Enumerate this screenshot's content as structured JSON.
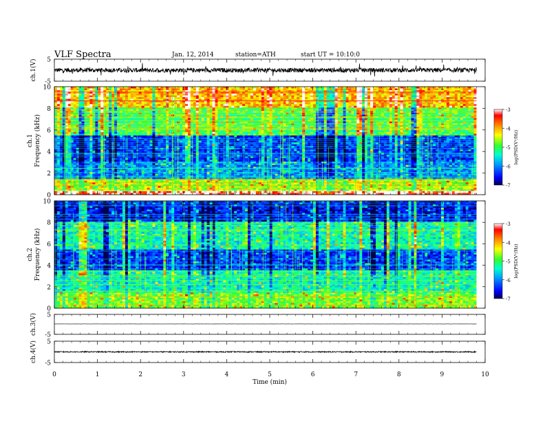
{
  "header": {
    "title": "VLF  Spectra",
    "date": "Jan. 12, 2014",
    "station": "station=ATH",
    "start": "start  UT  =   10:10:0"
  },
  "chart_data": [
    {
      "type": "line",
      "panel": "ch1-waveform",
      "ylabel": "ch.1(V)",
      "yticks": [
        "5",
        "-5"
      ],
      "ylim": [
        -5,
        5
      ],
      "x_range_min": [
        0,
        9.8
      ],
      "baseline_v": 0,
      "noise_amplitude_v": 1.0,
      "color": "#000000"
    },
    {
      "type": "heatmap",
      "panel": "ch1-spectrogram",
      "ylabel_channel": "ch.1",
      "ylabel": "Frequency  (kHz)",
      "yticks": [
        "0",
        "2",
        "4",
        "6",
        "8",
        "10"
      ],
      "ylim_khz": [
        0,
        10
      ],
      "x_range_min": [
        0,
        9.8
      ],
      "colorbar": {
        "label": "log(PSD(V²/Hz)",
        "ticks": [
          "-3",
          "-4",
          "-5",
          "-6",
          "-7"
        ],
        "range": [
          -7,
          -3
        ]
      },
      "typical_levels": [
        {
          "freq_khz": [
            0.0,
            0.4
          ],
          "log_psd": -3.2
        },
        {
          "freq_khz": [
            0.4,
            1.5
          ],
          "log_psd": -4.6
        },
        {
          "freq_khz": [
            1.5,
            3.0
          ],
          "log_psd": -6.0
        },
        {
          "freq_khz": [
            3.0,
            5.5
          ],
          "log_psd": -6.4
        },
        {
          "freq_khz": [
            5.5,
            8.0
          ],
          "log_psd": -5.0
        },
        {
          "freq_khz": [
            8.0,
            10.0
          ],
          "log_psd": -4.1
        }
      ]
    },
    {
      "type": "heatmap",
      "panel": "ch2-spectrogram",
      "ylabel_channel": "ch.2",
      "ylabel": "Frequency  (kHz)",
      "yticks": [
        "0",
        "2",
        "4",
        "6",
        "8",
        "10"
      ],
      "ylim_khz": [
        0,
        10
      ],
      "x_range_min": [
        0,
        9.8
      ],
      "colorbar": {
        "label": "log(PSD(V²/Hz)",
        "ticks": [
          "-3",
          "-4",
          "-5",
          "-6",
          "-7"
        ],
        "range": [
          -7,
          -3
        ]
      },
      "typical_levels": [
        {
          "freq_khz": [
            0.0,
            1.5
          ],
          "log_psd": -4.8
        },
        {
          "freq_khz": [
            1.5,
            3.5
          ],
          "log_psd": -5.4
        },
        {
          "freq_khz": [
            3.5,
            5.5
          ],
          "log_psd": -6.4
        },
        {
          "freq_khz": [
            5.5,
            8.0
          ],
          "log_psd": -5.4
        },
        {
          "freq_khz": [
            8.0,
            10.0
          ],
          "log_psd": -6.6
        }
      ]
    },
    {
      "type": "line",
      "panel": "ch3-waveform",
      "ylabel": "ch.3(V)",
      "yticks": [
        "5",
        "-5"
      ],
      "ylim": [
        -5,
        5
      ],
      "x_range_min": [
        0,
        9.8
      ],
      "baseline_v": 0.2,
      "noise_amplitude_v": 0.05,
      "color": "#000000"
    },
    {
      "type": "line",
      "panel": "ch4-waveform",
      "ylabel": "ch.4(V)",
      "yticks": [
        "5",
        "-5"
      ],
      "ylim": [
        -5,
        5
      ],
      "x_range_min": [
        0,
        9.8
      ],
      "baseline_v": 0,
      "noise_amplitude_v": 0.25,
      "color": "#000000"
    }
  ],
  "x_axis": {
    "label": "Time  (min)",
    "ticks": [
      "0",
      "1",
      "2",
      "3",
      "4",
      "5",
      "6",
      "7",
      "8",
      "9",
      "10"
    ],
    "xlim": [
      0,
      10
    ]
  }
}
